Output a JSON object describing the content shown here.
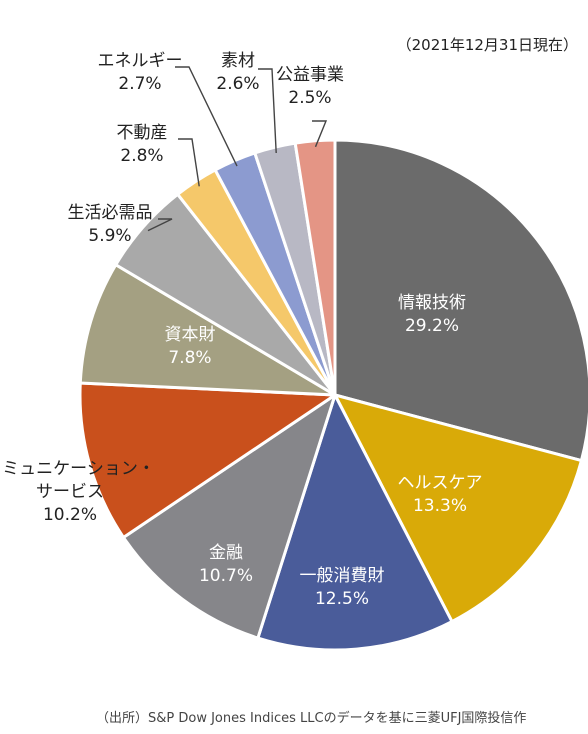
{
  "chart_data": {
    "type": "pie",
    "date_note": "（2021年12月31日現在）",
    "source_note": "（出所）S&P Dow Jones Indices LLCのデータを基に三菱UFJ国際投信作",
    "slices": [
      {
        "name": "情報技術",
        "value": 29.2,
        "label": "29.2%",
        "color": "#6b6b6b"
      },
      {
        "name": "ヘルスケア",
        "value": 13.3,
        "label": "13.3%",
        "color": "#d9aa08"
      },
      {
        "name": "一般消費財",
        "value": 12.5,
        "label": "12.5%",
        "color": "#4a5c9a"
      },
      {
        "name": "金融",
        "value": 10.7,
        "label": "10.7%",
        "color": "#86868a"
      },
      {
        "name": "コミュニケーション・\nサービス",
        "value": 10.2,
        "label": "10.2%",
        "color": "#c9501c"
      },
      {
        "name": "資本財",
        "value": 7.8,
        "label": "7.8%",
        "color": "#a4a082"
      },
      {
        "name": "生活必需品",
        "value": 5.9,
        "label": "5.9%",
        "color": "#a9a9a9"
      },
      {
        "name": "不動産",
        "value": 2.8,
        "label": "2.8%",
        "color": "#f5c86a"
      },
      {
        "name": "エネルギー",
        "value": 2.7,
        "label": "2.7%",
        "color": "#8c9bd0"
      },
      {
        "name": "素材",
        "value": 2.6,
        "label": "2.6%",
        "color": "#b8b8c4"
      },
      {
        "name": "公益事業",
        "value": 2.5,
        "label": "2.5%",
        "color": "#e49585"
      }
    ]
  }
}
